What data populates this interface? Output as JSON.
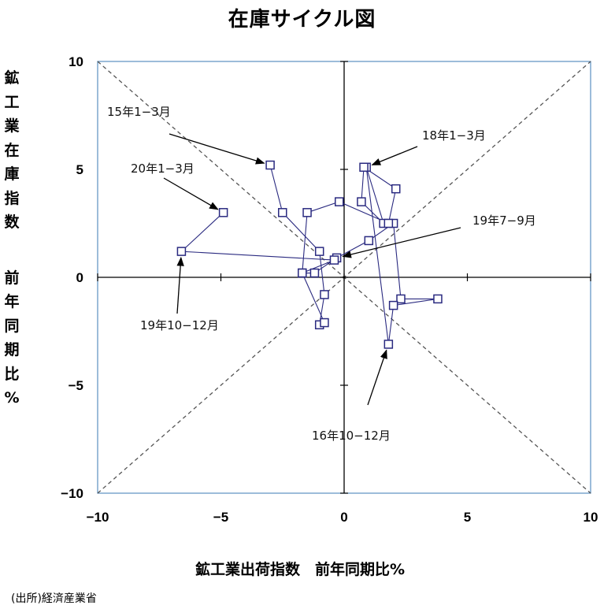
{
  "chart_data": {
    "type": "scatter",
    "title": "在庫サイクル図",
    "xlabel": "鉱工業出荷指数　前年同期比%",
    "ylabel": [
      "鉱工業在庫指数",
      "前年同期比%"
    ],
    "xlim": [
      -10,
      10
    ],
    "ylim": [
      -10,
      10
    ],
    "xticks": [
      "−10",
      "−5",
      "0",
      "5",
      "10"
    ],
    "yticks": [
      "10",
      "5",
      "0",
      "−5",
      "−10"
    ],
    "grid": false,
    "legend": "none",
    "series": [
      {
        "x": [
          -3.0,
          -2.5,
          -1.0,
          -0.8,
          -1.0,
          -0.8,
          -1.7,
          -1.2,
          -0.3,
          1.0,
          2.0,
          2.3,
          3.8,
          2.0,
          1.8,
          0.9,
          1.6,
          0.7,
          0.8,
          2.1,
          1.8,
          -0.2,
          -1.5,
          -1.7,
          -0.4,
          -6.6,
          -4.9
        ],
        "y": [
          5.2,
          3.0,
          1.2,
          -0.8,
          -2.2,
          -2.1,
          0.2,
          0.2,
          0.9,
          1.7,
          2.5,
          -1.0,
          -1.0,
          -1.3,
          -3.1,
          5.1,
          2.5,
          3.5,
          5.1,
          4.1,
          2.5,
          3.5,
          3.0,
          0.2,
          0.8,
          1.2,
          3.0
        ]
      }
    ],
    "diagonals": [
      {
        "from": [
          -10,
          10
        ],
        "to": [
          10,
          -10
        ],
        "style": "dashed"
      },
      {
        "from": [
          -10,
          -10
        ],
        "to": [
          10,
          10
        ],
        "style": "dashed"
      }
    ],
    "annotations": [
      {
        "text": "15年1−3月",
        "point": [
          -3.0,
          5.2
        ]
      },
      {
        "text": "20年1−3月",
        "point": [
          -4.9,
          3.0
        ]
      },
      {
        "text": "18年1−3月",
        "point": [
          0.9,
          5.1
        ]
      },
      {
        "text": "19年7−9月",
        "point": [
          -0.3,
          0.9
        ]
      },
      {
        "text": "19年10−12月",
        "point": [
          -6.6,
          1.2
        ]
      },
      {
        "text": "16年10−12月",
        "point": [
          1.8,
          -3.1
        ]
      }
    ],
    "colors": {
      "series": "#2a2a80",
      "frame": "#5b8fc0",
      "axis": "#000000",
      "diagonal": "#555555"
    }
  },
  "source": "(出所)経済産業省"
}
